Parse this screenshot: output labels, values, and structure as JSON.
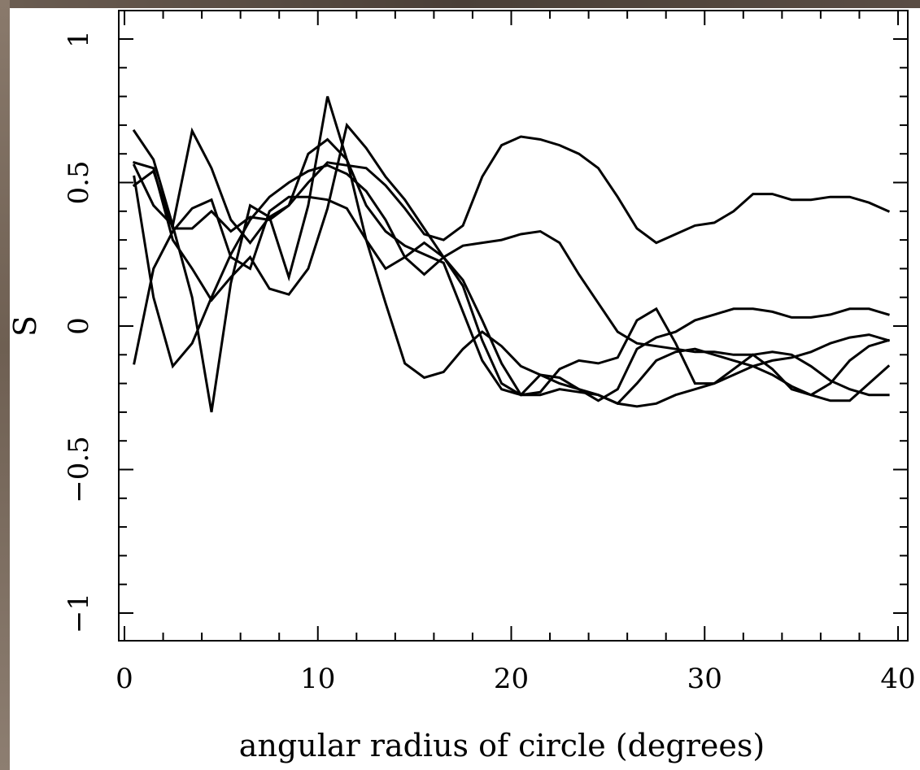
{
  "colors": {
    "line": "#000000",
    "background": "#ffffff",
    "frame": "#7a6a5c"
  },
  "chart_data": {
    "type": "line",
    "title": "",
    "xlabel": "angular radius of circle (degrees)",
    "ylabel": "S",
    "xlim": [
      0,
      40
    ],
    "ylim": [
      -1.1,
      1.1
    ],
    "xticks": [
      0,
      10,
      20,
      30,
      40
    ],
    "xtick_labels": [
      "0",
      "10",
      "20",
      "30",
      "40"
    ],
    "yticks": [
      -1,
      -0.5,
      0,
      0.5,
      1
    ],
    "ytick_labels": [
      "−1",
      "−0.5",
      "0",
      "0.5",
      "1"
    ],
    "grid": false,
    "legend": "none",
    "series": [
      {
        "x": [
          0.5,
          1.5,
          2.5,
          3.5,
          4.5,
          5.5,
          6.5,
          7.5,
          8.5,
          9.5,
          10.5,
          11.5,
          12.5,
          13.5,
          14.5,
          15.5,
          16.5,
          17.5,
          18.5,
          19.5,
          20.5,
          21.5,
          22.5,
          23.5,
          24.5,
          25.5,
          26.5,
          27.5,
          28.5,
          29.5,
          30.5,
          31.5,
          32.5,
          33.5,
          34.5,
          35.5,
          36.5,
          37.5,
          38.5,
          39.5
        ],
        "values": [
          0.49,
          0.54,
          0.34,
          0.34,
          0.4,
          0.33,
          0.38,
          0.37,
          0.42,
          0.5,
          0.57,
          0.56,
          0.55,
          0.49,
          0.41,
          0.32,
          0.3,
          0.35,
          0.52,
          0.63,
          0.66,
          0.65,
          0.63,
          0.6,
          0.55,
          0.45,
          0.34,
          0.29,
          0.32,
          0.35,
          0.36,
          0.4,
          0.46,
          0.46,
          0.44,
          0.44,
          0.45,
          0.45,
          0.43,
          0.4
        ]
      },
      {
        "x": [
          0.5,
          1.5,
          2.5,
          3.5,
          4.5,
          5.5,
          6.5,
          7.5,
          8.5,
          9.5,
          10.5,
          11.5,
          12.5,
          13.5,
          14.5,
          15.5,
          16.5,
          17.5,
          18.5,
          19.5,
          20.5,
          21.5,
          22.5,
          23.5,
          24.5,
          25.5,
          26.5,
          27.5,
          28.5,
          29.5,
          30.5,
          31.5,
          32.5,
          33.5,
          34.5,
          35.5,
          36.5,
          37.5,
          38.5,
          39.5
        ],
        "values": [
          0.68,
          0.58,
          0.35,
          0.1,
          -0.3,
          0.15,
          0.42,
          0.38,
          0.17,
          0.42,
          0.8,
          0.58,
          0.3,
          0.2,
          0.24,
          0.29,
          0.24,
          0.16,
          0.02,
          -0.13,
          -0.24,
          -0.23,
          -0.15,
          -0.12,
          -0.13,
          -0.11,
          0.02,
          0.06,
          -0.06,
          -0.2,
          -0.2,
          -0.15,
          -0.1,
          -0.15,
          -0.22,
          -0.24,
          -0.2,
          -0.12,
          -0.07,
          -0.05
        ]
      },
      {
        "x": [
          0.5,
          1.5,
          2.5,
          3.5,
          4.5,
          5.5,
          6.5,
          7.5,
          8.5,
          9.5,
          10.5,
          11.5,
          12.5,
          13.5,
          14.5,
          15.5,
          16.5,
          17.5,
          18.5,
          19.5,
          20.5,
          21.5,
          22.5,
          23.5,
          24.5,
          25.5,
          26.5,
          27.5,
          28.5,
          29.5,
          30.5,
          31.5,
          32.5,
          33.5,
          34.5,
          35.5,
          36.5,
          37.5,
          38.5,
          39.5
        ],
        "values": [
          0.56,
          0.42,
          0.35,
          0.68,
          0.55,
          0.37,
          0.29,
          0.38,
          0.42,
          0.6,
          0.65,
          0.58,
          0.42,
          0.33,
          0.28,
          0.25,
          0.22,
          0.05,
          -0.12,
          -0.22,
          -0.24,
          -0.17,
          -0.18,
          -0.22,
          -0.26,
          -0.22,
          -0.08,
          -0.04,
          -0.02,
          0.02,
          0.04,
          0.06,
          0.06,
          0.05,
          0.03,
          0.03,
          0.04,
          0.06,
          0.06,
          0.04
        ]
      },
      {
        "x": [
          0.5,
          1.5,
          2.5,
          3.5,
          4.5,
          5.5,
          6.5,
          7.5,
          8.5,
          9.5,
          10.5,
          11.5,
          12.5,
          13.5,
          14.5,
          15.5,
          16.5,
          17.5,
          18.5,
          19.5,
          20.5,
          21.5,
          22.5,
          23.5,
          24.5,
          25.5,
          26.5,
          27.5,
          28.5,
          29.5,
          30.5,
          31.5,
          32.5,
          33.5,
          34.5,
          35.5,
          36.5,
          37.5,
          38.5,
          39.5
        ],
        "values": [
          -0.13,
          0.2,
          0.33,
          0.41,
          0.44,
          0.24,
          0.2,
          0.4,
          0.45,
          0.45,
          0.44,
          0.41,
          0.3,
          0.08,
          -0.13,
          -0.18,
          -0.16,
          -0.08,
          -0.02,
          -0.07,
          -0.14,
          -0.17,
          -0.2,
          -0.22,
          -0.24,
          -0.27,
          -0.28,
          -0.27,
          -0.24,
          -0.22,
          -0.2,
          -0.17,
          -0.14,
          -0.12,
          -0.11,
          -0.09,
          -0.06,
          -0.04,
          -0.03,
          -0.05
        ]
      },
      {
        "x": [
          0.5,
          1.5,
          2.5,
          3.5,
          4.5,
          5.5,
          6.5,
          7.5,
          8.5,
          9.5,
          10.5,
          11.5,
          12.5,
          13.5,
          14.5,
          15.5,
          16.5,
          17.5,
          18.5,
          19.5,
          20.5,
          21.5,
          22.5,
          23.5,
          24.5,
          25.5,
          26.5,
          27.5,
          28.5,
          29.5,
          30.5,
          31.5,
          32.5,
          33.5,
          34.5,
          35.5,
          36.5,
          37.5,
          38.5,
          39.5
        ],
        "values": [
          0.52,
          0.1,
          -0.14,
          -0.06,
          0.1,
          0.25,
          0.37,
          0.45,
          0.5,
          0.54,
          0.56,
          0.53,
          0.47,
          0.37,
          0.24,
          0.18,
          0.24,
          0.28,
          0.29,
          0.3,
          0.32,
          0.33,
          0.29,
          0.18,
          0.08,
          -0.02,
          -0.06,
          -0.07,
          -0.08,
          -0.09,
          -0.09,
          -0.1,
          -0.1,
          -0.09,
          -0.1,
          -0.14,
          -0.19,
          -0.22,
          -0.24,
          -0.24
        ]
      },
      {
        "x": [
          0.5,
          1.5,
          2.5,
          3.5,
          4.5,
          5.5,
          6.5,
          7.5,
          8.5,
          9.5,
          10.5,
          11.5,
          12.5,
          13.5,
          14.5,
          15.5,
          16.5,
          17.5,
          18.5,
          19.5,
          20.5,
          21.5,
          22.5,
          23.5,
          24.5,
          25.5,
          26.5,
          27.5,
          28.5,
          29.5,
          30.5,
          31.5,
          32.5,
          33.5,
          34.5,
          35.5,
          36.5,
          37.5,
          38.5,
          39.5
        ],
        "values": [
          0.57,
          0.55,
          0.3,
          0.2,
          0.09,
          0.17,
          0.24,
          0.13,
          0.11,
          0.2,
          0.41,
          0.7,
          0.62,
          0.52,
          0.44,
          0.34,
          0.24,
          0.14,
          -0.05,
          -0.2,
          -0.24,
          -0.24,
          -0.22,
          -0.23,
          -0.24,
          -0.27,
          -0.2,
          -0.12,
          -0.09,
          -0.08,
          -0.1,
          -0.12,
          -0.14,
          -0.17,
          -0.21,
          -0.24,
          -0.26,
          -0.26,
          -0.2,
          -0.14
        ]
      }
    ]
  }
}
